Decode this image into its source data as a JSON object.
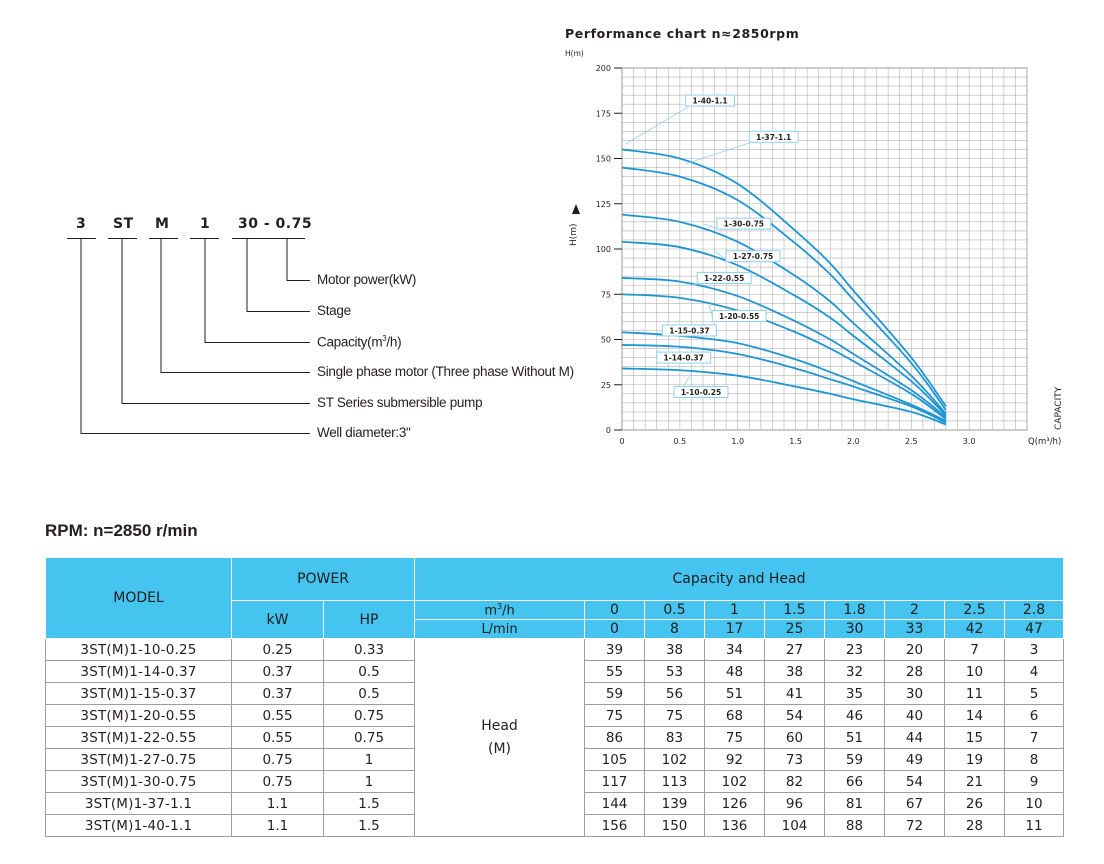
{
  "model_code": {
    "parts": [
      "3",
      "ST",
      "M",
      "1",
      "30 - 0.75"
    ],
    "labels": [
      "Motor power(kW)",
      "Stage",
      "Capacity(m³/h)",
      "Single phase motor (Three phase Without M)",
      "ST Series submersible pump",
      "Well diameter:3\""
    ]
  },
  "chart_data": {
    "type": "line",
    "title": "Performance chart n≈2850rpm",
    "ylabel": "H(m)",
    "ylabel_side": "H(m)",
    "xlabel": "Q(m³/h)",
    "xlabel_side": "CAPACITY",
    "xlim": [
      0,
      3.5
    ],
    "ylim": [
      0,
      200
    ],
    "xticks": [
      0,
      0.5,
      1.0,
      1.5,
      2.0,
      2.5,
      3.0
    ],
    "xtick_labels": [
      "0",
      "0.5",
      "1.0",
      "1.5",
      "2.0",
      "2.5",
      "3.0"
    ],
    "yticks": [
      0,
      25,
      50,
      75,
      100,
      125,
      150,
      175,
      200
    ],
    "grid": true,
    "x": [
      0,
      0.5,
      1,
      1.5,
      1.8,
      2,
      2.5,
      2.8
    ],
    "series": [
      {
        "name": "1-10-0.25",
        "values": [
          34,
          33,
          30,
          24,
          20,
          17,
          10,
          3
        ]
      },
      {
        "name": "1-14-0.37",
        "values": [
          47,
          46,
          42,
          34,
          28,
          24,
          13,
          4
        ]
      },
      {
        "name": "1-15-0.37",
        "values": [
          54,
          52,
          48,
          39,
          32,
          27,
          14,
          5
        ]
      },
      {
        "name": "1-20-0.55",
        "values": [
          75,
          73,
          66,
          54,
          45,
          38,
          20,
          6
        ]
      },
      {
        "name": "1-22-0.55",
        "values": [
          84,
          82,
          74,
          60,
          50,
          42,
          22,
          7
        ]
      },
      {
        "name": "1-27-0.75",
        "values": [
          104,
          101,
          91,
          74,
          62,
          52,
          27,
          8
        ]
      },
      {
        "name": "1-30-0.75",
        "values": [
          119,
          115,
          104,
          85,
          71,
          59,
          30,
          9
        ]
      },
      {
        "name": "1-37-1.1",
        "values": [
          145,
          140,
          127,
          103,
          86,
          72,
          37,
          11
        ]
      },
      {
        "name": "1-40-1.1",
        "values": [
          155,
          150,
          136,
          110,
          92,
          77,
          40,
          13
        ]
      }
    ],
    "annotations": [
      "1-40-1.1",
      "1-37-1.1",
      "1-30-0.75",
      "1-27-0.75",
      "1-22-0.55",
      "1-20-0.55",
      "1-15-0.37",
      "1-14-0.37",
      "1-10-0.25"
    ],
    "colors": {
      "curve": "#1e96d4",
      "grid": "#b3b3b3",
      "leader": "#8fd0f0"
    }
  },
  "rpm_title": "RPM: n=2850 r/min",
  "table": {
    "model_header": "MODEL",
    "power_header": "POWER",
    "kw_header": "kW",
    "hp_header": "HP",
    "capacity_header": "Capacity and Head",
    "flow_unit": "m³/h",
    "lmin_unit": "L/min",
    "flows": [
      "0",
      "0.5",
      "1",
      "1.5",
      "1.8",
      "2",
      "2.5",
      "2.8"
    ],
    "lmin": [
      "0",
      "8",
      "17",
      "25",
      "30",
      "33",
      "42",
      "47"
    ],
    "head_label": "Head",
    "head_unit": "(M)",
    "rows": [
      {
        "model": "3ST(M)1-10-0.25",
        "kw": "0.25",
        "hp": "0.33",
        "heads": [
          "39",
          "38",
          "34",
          "27",
          "23",
          "20",
          "7",
          "3"
        ]
      },
      {
        "model": "3ST(M)1-14-0.37",
        "kw": "0.37",
        "hp": "0.5",
        "heads": [
          "55",
          "53",
          "48",
          "38",
          "32",
          "28",
          "10",
          "4"
        ]
      },
      {
        "model": "3ST(M)1-15-0.37",
        "kw": "0.37",
        "hp": "0.5",
        "heads": [
          "59",
          "56",
          "51",
          "41",
          "35",
          "30",
          "11",
          "5"
        ]
      },
      {
        "model": "3ST(M)1-20-0.55",
        "kw": "0.55",
        "hp": "0.75",
        "heads": [
          "75",
          "75",
          "68",
          "54",
          "46",
          "40",
          "14",
          "6"
        ]
      },
      {
        "model": "3ST(M)1-22-0.55",
        "kw": "0.55",
        "hp": "0.75",
        "heads": [
          "86",
          "83",
          "75",
          "60",
          "51",
          "44",
          "15",
          "7"
        ]
      },
      {
        "model": "3ST(M)1-27-0.75",
        "kw": "0.75",
        "hp": "1",
        "heads": [
          "105",
          "102",
          "92",
          "73",
          "59",
          "49",
          "19",
          "8"
        ]
      },
      {
        "model": "3ST(M)1-30-0.75",
        "kw": "0.75",
        "hp": "1",
        "heads": [
          "117",
          "113",
          "102",
          "82",
          "66",
          "54",
          "21",
          "9"
        ]
      },
      {
        "model": "3ST(M)1-37-1.1",
        "kw": "1.1",
        "hp": "1.5",
        "heads": [
          "144",
          "139",
          "126",
          "96",
          "81",
          "67",
          "26",
          "10"
        ]
      },
      {
        "model": "3ST(M)1-40-1.1",
        "kw": "1.1",
        "hp": "1.5",
        "heads": [
          "156",
          "150",
          "136",
          "104",
          "88",
          "72",
          "28",
          "11"
        ]
      }
    ]
  }
}
